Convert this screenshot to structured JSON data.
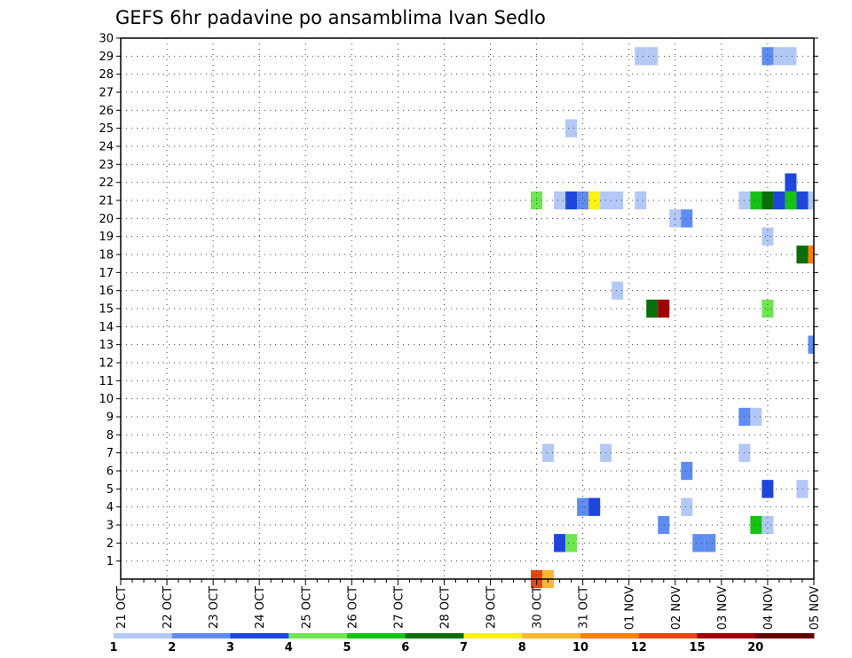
{
  "chart_data": {
    "type": "heatmap",
    "title": "GEFS 6hr padavine po ansamblima Ivan Sedlo",
    "xlabel": "",
    "ylabel": "",
    "x_tick_labels": [
      "21 OCT",
      "22 OCT",
      "23 OCT",
      "24 OCT",
      "25 OCT",
      "26 OCT",
      "27 OCT",
      "28 OCT",
      "29 OCT",
      "30 OCT",
      "31 OCT",
      "01 NOV",
      "02 NOV",
      "03 NOV",
      "04 NOV",
      "05 NOV"
    ],
    "xlim_days": [
      0,
      15
    ],
    "y_ticks": [
      1,
      2,
      3,
      4,
      5,
      6,
      7,
      8,
      9,
      10,
      11,
      12,
      13,
      14,
      15,
      16,
      17,
      18,
      19,
      20,
      21,
      22,
      23,
      24,
      25,
      26,
      27,
      28,
      29,
      30
    ],
    "ylim": [
      0,
      30
    ],
    "grid": true,
    "legend": {
      "placement": "bottom",
      "labels": [
        "1",
        "2",
        "3",
        "4",
        "5",
        "6",
        "7",
        "8",
        "10",
        "12",
        "15",
        "20"
      ],
      "colors": [
        "#b4c8f5",
        "#5f8cf0",
        "#1e46dc",
        "#6ee650",
        "#14c314",
        "#0a6e0a",
        "#fff014",
        "#ffb432",
        "#ff8000",
        "#e64614",
        "#a00000",
        "#640000"
      ]
    },
    "cells": [
      {
        "day": 9.0,
        "member": 0,
        "color": "#e64614"
      },
      {
        "day": 9.25,
        "member": 0,
        "color": "#ffb432"
      },
      {
        "day": 9.25,
        "member": 7,
        "color": "#b4c8f5"
      },
      {
        "day": 9.5,
        "member": 2,
        "color": "#1e46dc"
      },
      {
        "day": 9.75,
        "member": 2,
        "color": "#6ee650"
      },
      {
        "day": 10.0,
        "member": 4,
        "color": "#5f8cf0"
      },
      {
        "day": 10.25,
        "member": 4,
        "color": "#1e46dc"
      },
      {
        "day": 10.5,
        "member": 7,
        "color": "#b4c8f5"
      },
      {
        "day": 11.75,
        "member": 3,
        "color": "#5f8cf0"
      },
      {
        "day": 12.25,
        "member": 4,
        "color": "#b4c8f5"
      },
      {
        "day": 12.25,
        "member": 6,
        "color": "#5f8cf0"
      },
      {
        "day": 12.5,
        "member": 2,
        "color": "#5f8cf0"
      },
      {
        "day": 12.75,
        "member": 2,
        "color": "#5f8cf0"
      },
      {
        "day": 13.5,
        "member": 7,
        "color": "#b4c8f5"
      },
      {
        "day": 13.5,
        "member": 9,
        "color": "#5f8cf0"
      },
      {
        "day": 13.75,
        "member": 9,
        "color": "#b4c8f5"
      },
      {
        "day": 13.75,
        "member": 3,
        "color": "#14c314"
      },
      {
        "day": 14.0,
        "member": 3,
        "color": "#b4c8f5"
      },
      {
        "day": 14.0,
        "member": 5,
        "color": "#1e46dc"
      },
      {
        "day": 14.75,
        "member": 5,
        "color": "#b4c8f5"
      },
      {
        "day": 15.0,
        "member": 13,
        "color": "#5f8cf0"
      },
      {
        "day": 11.5,
        "member": 15,
        "color": "#0a6e0a"
      },
      {
        "day": 11.75,
        "member": 15,
        "color": "#a00000"
      },
      {
        "day": 14.0,
        "member": 15,
        "color": "#6ee650"
      },
      {
        "day": 10.75,
        "member": 16,
        "color": "#b4c8f5"
      },
      {
        "day": 14.75,
        "member": 18,
        "color": "#0a6e0a"
      },
      {
        "day": 15.0,
        "member": 18,
        "color": "#ff8000"
      },
      {
        "day": 12.0,
        "member": 20,
        "color": "#b4c8f5"
      },
      {
        "day": 12.25,
        "member": 20,
        "color": "#5f8cf0"
      },
      {
        "day": 14.0,
        "member": 19,
        "color": "#b4c8f5"
      },
      {
        "day": 9.0,
        "member": 21,
        "color": "#6ee650"
      },
      {
        "day": 9.5,
        "member": 21,
        "color": "#b4c8f5"
      },
      {
        "day": 9.75,
        "member": 21,
        "color": "#1e46dc"
      },
      {
        "day": 10.0,
        "member": 21,
        "color": "#5f8cf0"
      },
      {
        "day": 10.25,
        "member": 21,
        "color": "#fff014"
      },
      {
        "day": 10.5,
        "member": 21,
        "color": "#b4c8f5"
      },
      {
        "day": 10.75,
        "member": 21,
        "color": "#b4c8f5"
      },
      {
        "day": 11.25,
        "member": 21,
        "color": "#b4c8f5"
      },
      {
        "day": 13.5,
        "member": 21,
        "color": "#b4c8f5"
      },
      {
        "day": 13.75,
        "member": 21,
        "color": "#14c314"
      },
      {
        "day": 14.0,
        "member": 21,
        "color": "#0a6e0a"
      },
      {
        "day": 14.25,
        "member": 21,
        "color": "#1e46dc"
      },
      {
        "day": 14.5,
        "member": 21,
        "color": "#14c314"
      },
      {
        "day": 14.75,
        "member": 21,
        "color": "#1e46dc"
      },
      {
        "day": 15.0,
        "member": 21,
        "color": "#b4c8f5"
      },
      {
        "day": 14.5,
        "member": 22,
        "color": "#1e46dc"
      },
      {
        "day": 9.75,
        "member": 25,
        "color": "#b4c8f5"
      },
      {
        "day": 11.25,
        "member": 29,
        "color": "#b4c8f5"
      },
      {
        "day": 11.5,
        "member": 29,
        "color": "#b4c8f5"
      },
      {
        "day": 14.0,
        "member": 29,
        "color": "#5f8cf0"
      },
      {
        "day": 14.25,
        "member": 29,
        "color": "#b4c8f5"
      },
      {
        "day": 14.5,
        "member": 29,
        "color": "#b4c8f5"
      }
    ]
  }
}
